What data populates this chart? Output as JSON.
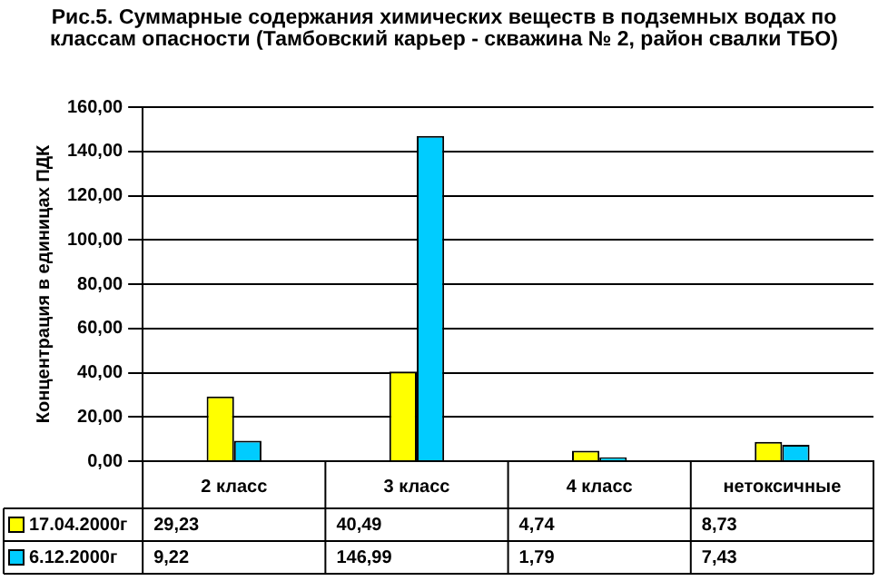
{
  "chart_data": {
    "type": "bar",
    "title": "Рис.5. Суммарные содержания химических веществ в подземных водах по классам опасности  (Тамбовский карьер - скважина № 2,  район свалки ТБО)",
    "ylabel": "Концентрация в единицах ПДК",
    "categories": [
      "2 класс",
      "3 класс",
      "4 класс",
      "нетоксичные"
    ],
    "series": [
      {
        "name": "17.04.2000г",
        "color": "#ffff00",
        "values": [
          29.23,
          40.49,
          4.74,
          8.73
        ],
        "value_labels": [
          "29,23",
          "40,49",
          "4,74",
          "8,73"
        ]
      },
      {
        "name": "6.12.2000г",
        "color": "#00ccff",
        "values": [
          9.22,
          146.99,
          1.79,
          7.43
        ],
        "value_labels": [
          "9,22",
          "146,99",
          "1,79",
          "7,43"
        ]
      }
    ],
    "ylim": [
      0,
      160
    ],
    "yticks": [
      {
        "value": 0,
        "label": "0,00"
      },
      {
        "value": 20,
        "label": "20,00"
      },
      {
        "value": 40,
        "label": "40,00"
      },
      {
        "value": 60,
        "label": "60,00"
      },
      {
        "value": 80,
        "label": "80,00"
      },
      {
        "value": 100,
        "label": "100,00"
      },
      {
        "value": 120,
        "label": "120,00"
      },
      {
        "value": 140,
        "label": "140,00"
      },
      {
        "value": 160,
        "label": "160,00"
      }
    ],
    "grid": "y",
    "legend": "bottom"
  }
}
